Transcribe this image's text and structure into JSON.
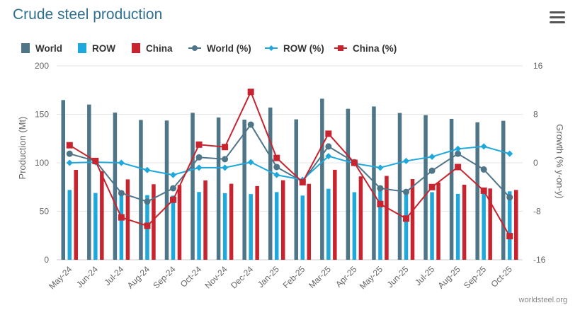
{
  "header": {
    "title": "Crude steel production",
    "menu_icon": "hamburger-menu-icon"
  },
  "credit": "worldsteel.org",
  "colors": {
    "world": "#4f7588",
    "row": "#1ea8dc",
    "china": "#c8242f",
    "grid": "#e6e6e6",
    "axis_text": "#666666"
  },
  "chart_data": {
    "type": "bar+line",
    "title": "Crude steel production",
    "categories": [
      "May-24",
      "Jun-24",
      "Jul-24",
      "Aug-24",
      "Sep-24",
      "Oct-24",
      "Nov-24",
      "Dec-24",
      "Jan-25",
      "Feb-25",
      "Mar-25",
      "Apr-25",
      "May-25",
      "Jun-25",
      "Jul-25",
      "Aug-25",
      "Sep-25",
      "Oct-25"
    ],
    "ylabel": "Production (Mt)",
    "ylabel_right": "Growth (% y-on-y)",
    "ylim": [
      0,
      200
    ],
    "yticks": [
      "0",
      "50",
      "100",
      "150",
      "200"
    ],
    "ylim_right": [
      -16,
      16
    ],
    "yticks_right": [
      "16",
      "8",
      "0",
      "-8",
      "-16"
    ],
    "series": [
      {
        "name": "World",
        "type": "bar",
        "axis": "left",
        "color": "#4f7588",
        "values": [
          164.7,
          160.1,
          151.8,
          144.2,
          143.6,
          151.6,
          146.7,
          144.5,
          157.0,
          144.8,
          166.1,
          155.7,
          158.1,
          151.4,
          149.2,
          145.3,
          141.8,
          143.3
        ]
      },
      {
        "name": "ROW",
        "type": "bar",
        "axis": "left",
        "color": "#1ea8dc",
        "values": [
          72.0,
          68.9,
          69.5,
          66.7,
          66.2,
          69.9,
          68.7,
          67.8,
          69.8,
          66.2,
          73.2,
          69.7,
          71.6,
          68.5,
          69.7,
          68.0,
          69.9,
          70.6
        ]
      },
      {
        "name": "China",
        "type": "bar",
        "axis": "left",
        "color": "#c8242f",
        "values": [
          92.7,
          91.6,
          82.9,
          77.9,
          77.1,
          81.9,
          78.4,
          76.0,
          82.0,
          78.3,
          92.8,
          86.0,
          86.5,
          83.2,
          79.7,
          77.4,
          73.5,
          72.0
        ]
      },
      {
        "name": "World (%)",
        "type": "line",
        "axis": "right",
        "color": "#4f7588",
        "marker": "circle",
        "values": [
          1.5,
          0.3,
          -5.0,
          -6.4,
          -4.2,
          0.9,
          0.6,
          6.3,
          -0.7,
          -3.1,
          2.7,
          0.1,
          -4.2,
          -4.8,
          -1.3,
          1.5,
          -1.1,
          -5.7
        ]
      },
      {
        "name": "ROW (%)",
        "type": "line",
        "axis": "right",
        "color": "#1ea8dc",
        "marker": "diamond",
        "values": [
          0.0,
          0.1,
          0.0,
          -1.2,
          -2.0,
          -0.8,
          -0.8,
          0.1,
          -2.0,
          -2.8,
          1.1,
          -0.1,
          -0.8,
          0.3,
          1.0,
          2.3,
          2.7,
          1.5
        ]
      },
      {
        "name": "China (%)",
        "type": "line",
        "axis": "right",
        "color": "#c8242f",
        "marker": "square",
        "values": [
          2.9,
          0.3,
          -9.0,
          -10.4,
          -6.1,
          3.0,
          2.6,
          11.7,
          0.8,
          -3.2,
          4.8,
          0.0,
          -6.8,
          -9.2,
          -4.0,
          -0.7,
          -4.6,
          -12.1
        ]
      }
    ],
    "legend": [
      "World",
      "ROW",
      "China",
      "World (%)",
      "ROW (%)",
      "China (%)"
    ],
    "legend_position": "top-left",
    "grid": true
  }
}
